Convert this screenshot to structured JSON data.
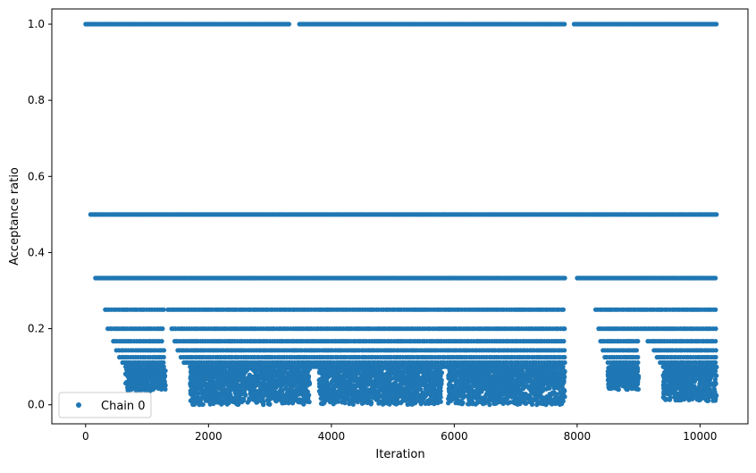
{
  "chart_data": {
    "type": "scatter",
    "title": "",
    "xlabel": "Iteration",
    "ylabel": "Acceptance ratio",
    "xlim": [
      -550,
      10780
    ],
    "ylim": [
      -0.05,
      1.04
    ],
    "xticks": [
      0,
      2000,
      4000,
      6000,
      8000,
      10000
    ],
    "xtick_labels": [
      "0",
      "2000",
      "4000",
      "6000",
      "8000",
      "10000"
    ],
    "yticks": [
      0.0,
      0.2,
      0.4,
      0.6,
      0.8,
      1.0
    ],
    "ytick_labels": [
      "0.0",
      "0.2",
      "0.4",
      "0.6",
      "0.8",
      "1.0"
    ],
    "grid": false,
    "legend": {
      "placement": "lower-left",
      "entries": [
        "Chain 0"
      ]
    },
    "series": [
      {
        "name": "Chain 0",
        "color": "#1f77b4",
        "marker": "circle",
        "x_range": [
          0,
          10270
        ],
        "description_levels": [
          1.0,
          0.5,
          0.333,
          0.25,
          0.2,
          0.167,
          0.143,
          0.125,
          0.111,
          0.1
        ],
        "bands": [
          {
            "y": 1.0,
            "segments": [
              [
                0,
                3320
              ],
              [
                3480,
                7800
              ],
              [
                7950,
                10270
              ]
            ]
          },
          {
            "y": 0.5,
            "segments": [
              [
                80,
                10270
              ]
            ]
          },
          {
            "y": 0.333,
            "segments": [
              [
                160,
                7800
              ],
              [
                8000,
                10270
              ]
            ]
          },
          {
            "y": 0.25,
            "segments": [
              [
                320,
                1280
              ],
              [
                1340,
                7800
              ],
              [
                8300,
                10270
              ]
            ]
          },
          {
            "y": 0.2,
            "segments": [
              [
                360,
                1280
              ],
              [
                1400,
                7800
              ],
              [
                8350,
                10270
              ]
            ]
          },
          {
            "y": 0.167,
            "segments": [
              [
                450,
                1280
              ],
              [
                1450,
                7800
              ],
              [
                8380,
                9000
              ],
              [
                9150,
                10270
              ]
            ]
          },
          {
            "y": 0.143,
            "segments": [
              [
                500,
                1280
              ],
              [
                1500,
                7800
              ],
              [
                8420,
                9000
              ],
              [
                9250,
                10270
              ]
            ]
          },
          {
            "y": 0.125,
            "segments": [
              [
                550,
                1280
              ],
              [
                1550,
                7800
              ],
              [
                8450,
                9000
              ],
              [
                9300,
                10270
              ]
            ]
          },
          {
            "y": 0.111,
            "segments": [
              [
                600,
                1280
              ],
              [
                1600,
                7800
              ],
              [
                8500,
                9000
              ],
              [
                9350,
                10270
              ]
            ]
          },
          {
            "y": 0.1,
            "segments": [
              [
                650,
                1280
              ],
              [
                1700,
                7800
              ],
              [
                8550,
                9000
              ],
              [
                9400,
                10270
              ]
            ]
          }
        ],
        "dense_clusters": [
          {
            "x": [
              650,
              1300
            ],
            "y": [
              0.035,
              0.1
            ]
          },
          {
            "x": [
              1700,
              3650
            ],
            "y": [
              0.0,
              0.1
            ]
          },
          {
            "x": [
              3800,
              5800
            ],
            "y": [
              0.0,
              0.1
            ]
          },
          {
            "x": [
              5900,
              7800
            ],
            "y": [
              0.0,
              0.1
            ]
          },
          {
            "x": [
              8500,
              9000
            ],
            "y": [
              0.04,
              0.1
            ]
          },
          {
            "x": [
              9400,
              10270
            ],
            "y": [
              0.01,
              0.1
            ]
          }
        ]
      }
    ]
  }
}
